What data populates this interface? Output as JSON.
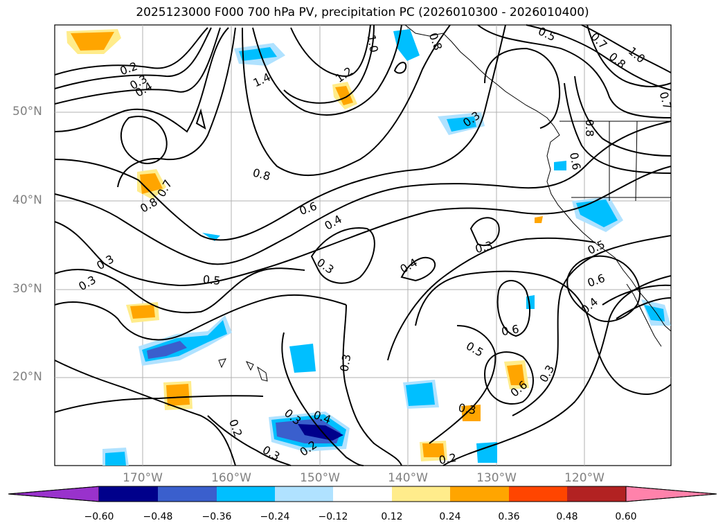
{
  "title": "2025123000 F000 700 hPa PV, precipitation PC (2026010300 - 2026010400)",
  "lat_labels": [
    "50°N",
    "40°N",
    "30°N",
    "20°N"
  ],
  "lon_labels": [
    "170°W",
    "160°W",
    "150°W",
    "140°W",
    "130°W",
    "120°W"
  ],
  "contour_labels": [
    "0.2",
    "0.3",
    "0.4",
    "0.5",
    "0.6",
    "0.7",
    "0.8",
    "1.0",
    "1.2",
    "1.4"
  ],
  "colorbar": {
    "tick_labels": [
      "−0.60",
      "−0.48",
      "−0.36",
      "−0.24",
      "−0.12",
      "0.12",
      "0.24",
      "0.36",
      "0.48",
      "0.60"
    ],
    "colors": [
      "#9932cc",
      "#00008b",
      "#3a5fcd",
      "#00bfff",
      "#b0e2ff",
      "#ffffff",
      "#ffec8b",
      "#ffa500",
      "#ff4500",
      "#b22222",
      "#ff82ab"
    ]
  }
}
